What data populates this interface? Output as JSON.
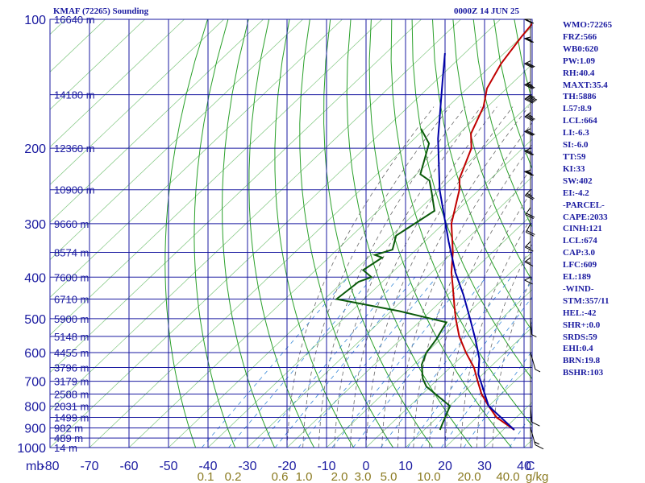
{
  "header": {
    "station": "KMAF (72265) Sounding",
    "time": "0000Z 14 JUN 25"
  },
  "colors": {
    "grid": "#1a1aa0",
    "temp": "#c00000",
    "dewpoint": "#0a5a0a",
    "parcel": "#0000a8",
    "dry_adiabat": "#2aa02a",
    "moist_adiabat": "#6a6a6a",
    "mixing_ratio": "#3a8ad8",
    "mr_label": "#8a7a20"
  },
  "chart_data": {
    "type": "line",
    "title": "KMAF (72265) Sounding",
    "xlabel": "",
    "ylabel": "",
    "x_axis_unit": "C",
    "y_axis_unit": "mb",
    "temp_ticks": [
      -80,
      -70,
      -60,
      -50,
      -40,
      -30,
      -20,
      -10,
      0,
      10,
      20,
      30,
      40
    ],
    "temp_tick_labels": [
      "-80",
      "-70",
      "-60",
      "-50",
      "-40",
      "-30",
      "-20",
      "-10",
      "0",
      "10",
      "20",
      "30",
      "40"
    ],
    "pressure_ticks": [
      100,
      200,
      300,
      400,
      500,
      600,
      700,
      800,
      900,
      1000
    ],
    "pressure_tick_labels": [
      "100",
      "200",
      "300",
      "400",
      "500",
      "600",
      "700",
      "800",
      "900",
      "1000"
    ],
    "height_labels": [
      {
        "p": 100,
        "text": "16640 m"
      },
      {
        "p": 150,
        "text": "14180 m"
      },
      {
        "p": 200,
        "text": "12360 m"
      },
      {
        "p": 250,
        "text": "10900 m"
      },
      {
        "p": 300,
        "text": "9660 m"
      },
      {
        "p": 350,
        "text": "8574 m"
      },
      {
        "p": 400,
        "text": "7600 m"
      },
      {
        "p": 450,
        "text": "6710 m"
      },
      {
        "p": 500,
        "text": "5900 m"
      },
      {
        "p": 550,
        "text": "5148 m"
      },
      {
        "p": 600,
        "text": "4455 m"
      },
      {
        "p": 650,
        "text": "3796 m"
      },
      {
        "p": 700,
        "text": "3179 m"
      },
      {
        "p": 750,
        "text": "2588 m"
      },
      {
        "p": 800,
        "text": "2031 m"
      },
      {
        "p": 850,
        "text": "1499 m"
      },
      {
        "p": 900,
        "text": "982 m"
      },
      {
        "p": 950,
        "text": "489 m"
      },
      {
        "p": 1000,
        "text": "14 m"
      }
    ],
    "mixing_ratio_labels": [
      "0.1",
      "0.2",
      "0.6",
      "1.0",
      "2.0",
      "3.0",
      "5.0",
      "10.0",
      "20.0",
      "40.0"
    ],
    "mixing_ratio_unit": "g/kg",
    "series": [
      {
        "name": "temperature",
        "points": [
          [
            32.8,
            909
          ],
          [
            25,
            850
          ],
          [
            20,
            800
          ],
          [
            15,
            750
          ],
          [
            10.6,
            700
          ],
          [
            6,
            650
          ],
          [
            0,
            600
          ],
          [
            -6,
            550
          ],
          [
            -11.6,
            500
          ],
          [
            -15,
            470
          ],
          [
            -21,
            420
          ],
          [
            -25,
            390
          ],
          [
            -30,
            350
          ],
          [
            -38,
            300
          ],
          [
            -45,
            250
          ],
          [
            -48,
            235
          ],
          [
            -53,
            200
          ],
          [
            -57,
            185
          ],
          [
            -61,
            160
          ],
          [
            -65,
            145
          ],
          [
            -68,
            127
          ],
          [
            -70,
            110
          ],
          [
            -71,
            100
          ]
        ]
      },
      {
        "name": "dewpoint",
        "points": [
          [
            14,
            909
          ],
          [
            13,
            880
          ],
          [
            10.2,
            800
          ],
          [
            -1,
            720
          ],
          [
            -4,
            690
          ],
          [
            -8,
            640
          ],
          [
            -10,
            600
          ],
          [
            -11,
            560
          ],
          [
            -13,
            510
          ],
          [
            -28,
            480
          ],
          [
            -47,
            450
          ],
          [
            -46,
            410
          ],
          [
            -44,
            400
          ],
          [
            -48,
            385
          ],
          [
            -46.5,
            360
          ],
          [
            -49,
            355
          ],
          [
            -46,
            345
          ],
          [
            -48.8,
            320
          ],
          [
            -45.7,
            280
          ],
          [
            -51,
            255
          ],
          [
            -55,
            238
          ],
          [
            -59,
            230
          ],
          [
            -65,
            195
          ],
          [
            -71,
            180
          ]
        ]
      },
      {
        "name": "parcel",
        "points": [
          [
            32.8,
            909
          ],
          [
            20,
            800
          ],
          [
            8.9,
            674
          ],
          [
            5,
            620
          ],
          [
            -1,
            560
          ],
          [
            -8,
            500
          ],
          [
            -16,
            440
          ],
          [
            -24,
            390
          ],
          [
            -34,
            330
          ],
          [
            -50,
            250
          ],
          [
            -64,
            190
          ],
          [
            -78,
            140
          ],
          [
            -85,
            120
          ]
        ]
      }
    ],
    "winds": [
      {
        "p": 100,
        "dir": 270,
        "spd": 20
      },
      {
        "p": 110,
        "dir": 265,
        "spd": 25
      },
      {
        "p": 125,
        "dir": 260,
        "spd": 30
      },
      {
        "p": 140,
        "dir": 260,
        "spd": 35
      },
      {
        "p": 150,
        "dir": 255,
        "spd": 60
      },
      {
        "p": 165,
        "dir": 255,
        "spd": 35
      },
      {
        "p": 180,
        "dir": 260,
        "spd": 30
      },
      {
        "p": 200,
        "dir": 260,
        "spd": 25
      },
      {
        "p": 225,
        "dir": 265,
        "spd": 25
      },
      {
        "p": 250,
        "dir": 250,
        "spd": 25
      },
      {
        "p": 275,
        "dir": 245,
        "spd": 20
      },
      {
        "p": 300,
        "dir": 240,
        "spd": 20
      },
      {
        "p": 330,
        "dir": 250,
        "spd": 15
      },
      {
        "p": 360,
        "dir": 255,
        "spd": 15
      },
      {
        "p": 400,
        "dir": 260,
        "spd": 10
      },
      {
        "p": 500,
        "dir": 200,
        "spd": 5
      },
      {
        "p": 600,
        "dir": 180,
        "spd": 5
      },
      {
        "p": 800,
        "dir": 200,
        "spd": 10
      },
      {
        "p": 900,
        "dir": 180,
        "spd": 15
      }
    ]
  },
  "indices": [
    "WMO:72265",
    "FRZ:566",
    "WB0:620",
    "PW:1.09",
    "RH:40.4",
    "MAXT:35.4",
    "TH:5886",
    "L57:8.9",
    "LCL:664",
    "LI:-6.3",
    "SI:-6.0",
    "TT:59",
    "KI:33",
    "SW:402",
    "EI:-4.2",
    "-PARCEL-",
    "CAPE:2033",
    "CINH:121",
    "LCL:674",
    "CAP:3.0",
    "LFC:609",
    "EL:189",
    "-WIND-",
    "STM:357/11",
    "HEL:-42",
    "SHR+:0.0",
    "SRDS:59",
    "EHI:0.4",
    "BRN:19.8",
    "BSHR:103"
  ]
}
